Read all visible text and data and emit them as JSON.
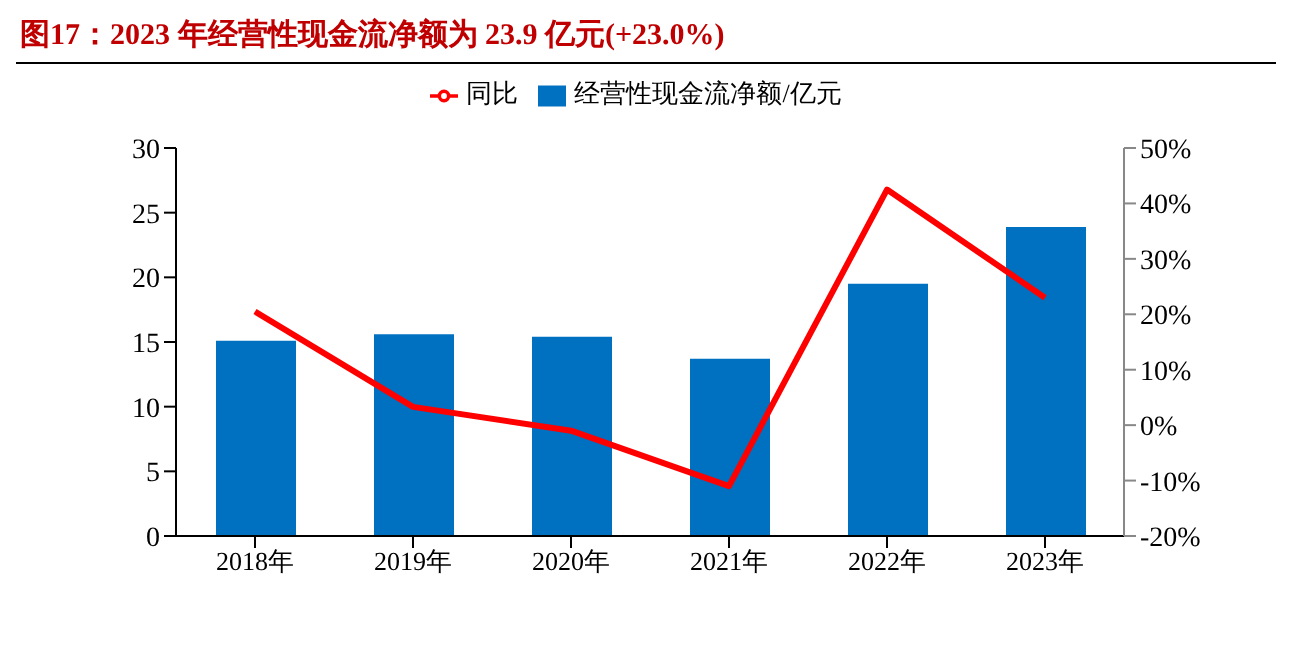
{
  "chart_data": {
    "type": "bar",
    "title": "图17：2023 年经营性现金流净额为 23.9 亿元(+23.0%)",
    "categories": [
      "2018年",
      "2019年",
      "2020年",
      "2021年",
      "2022年",
      "2023年"
    ],
    "series": [
      {
        "name": "经营性现金流净额/亿元",
        "color": "#0070c0",
        "values": [
          15.1,
          15.6,
          15.4,
          13.7,
          19.5,
          23.9
        ]
      },
      {
        "name": "同比",
        "type": "line",
        "axis": "y2",
        "color": "#ff0000",
        "values": [
          20.5,
          3.3,
          -1.0,
          -11.0,
          42.5,
          23.0
        ]
      }
    ],
    "ylim": [
      0,
      30
    ],
    "yticks": [
      0,
      5,
      10,
      15,
      20,
      25,
      30
    ],
    "y2lim": [
      -20,
      50
    ],
    "y2ticks": [
      {
        "value": -20,
        "label": "-20%"
      },
      {
        "value": -10,
        "label": "-10%"
      },
      {
        "value": 0,
        "label": "0%"
      },
      {
        "value": 10,
        "label": "10%"
      },
      {
        "value": 20,
        "label": "20%"
      },
      {
        "value": 30,
        "label": "30%"
      },
      {
        "value": 40,
        "label": "40%"
      },
      {
        "value": 50,
        "label": "50%"
      }
    ],
    "legend": "top",
    "grid": false,
    "marker": "none"
  }
}
